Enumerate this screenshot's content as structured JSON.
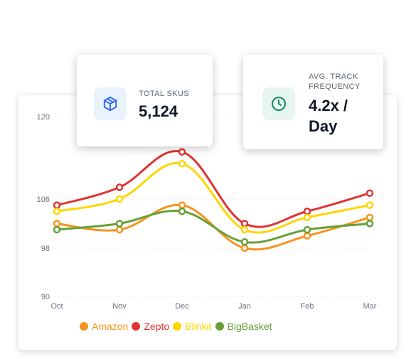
{
  "stats": {
    "skus": {
      "label": "TOTAL SKUS",
      "value": "5,124",
      "icon": "cube-icon"
    },
    "frequency": {
      "label": "AVG. TRACK FREQUENCY",
      "value": "4.2x / Day",
      "icon": "clock-icon"
    }
  },
  "colors": {
    "Amazon": "#f7941d",
    "Zepto": "#e03434",
    "Blinkit": "#ffd500",
    "BigBasket": "#689f38"
  },
  "chart_data": {
    "type": "line",
    "categories": [
      "Oct",
      "Nov",
      "Dec",
      "Jan",
      "Feb",
      "Mar"
    ],
    "yticks": [
      90,
      98,
      106,
      120
    ],
    "ylim": [
      90,
      120
    ],
    "grid": true,
    "legend_position": "bottom",
    "series": [
      {
        "name": "Amazon",
        "values": [
          102,
          101,
          105,
          98,
          100,
          103
        ]
      },
      {
        "name": "Zepto",
        "values": [
          105,
          108,
          114,
          102,
          104,
          107
        ]
      },
      {
        "name": "Blinkit",
        "values": [
          104,
          106,
          112,
          101,
          103,
          105
        ]
      },
      {
        "name": "BigBasket",
        "values": [
          101,
          102,
          104,
          99,
          101,
          102
        ]
      }
    ]
  }
}
